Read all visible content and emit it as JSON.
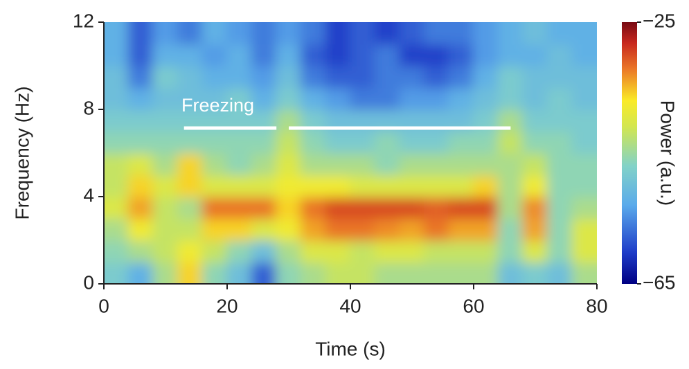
{
  "chart_data": {
    "type": "heatmap",
    "x_label": "Time (s)",
    "y_label": "Frequency (Hz)",
    "colorbar_label": "Power (a.u.)",
    "x": [
      2,
      6,
      10,
      14,
      18,
      22,
      26,
      30,
      34,
      38,
      42,
      46,
      50,
      54,
      58,
      62,
      66,
      70,
      74,
      78
    ],
    "y": [
      0.5,
      1.5,
      2.5,
      3.5,
      4.5,
      5.5,
      6.5,
      7.5,
      8.5,
      9.5,
      10.5,
      11.5
    ],
    "z": [
      [
        -48,
        -52,
        -44,
        -36,
        -46,
        -50,
        -58,
        -46,
        -44,
        -42,
        -42,
        -44,
        -44,
        -44,
        -44,
        -44,
        -50,
        -48,
        -50,
        -44
      ],
      [
        -46,
        -44,
        -42,
        -38,
        -42,
        -46,
        -50,
        -44,
        -40,
        -40,
        -42,
        -40,
        -40,
        -42,
        -42,
        -42,
        -46,
        -40,
        -46,
        -40
      ],
      [
        -44,
        -38,
        -42,
        -42,
        -36,
        -36,
        -40,
        -38,
        -34,
        -32,
        -32,
        -33,
        -34,
        -32,
        -34,
        -34,
        -46,
        -34,
        -46,
        -40
      ],
      [
        -40,
        -34,
        -42,
        -44,
        -32,
        -32,
        -32,
        -36,
        -32,
        -30,
        -30,
        -30,
        -30,
        -31,
        -30,
        -30,
        -44,
        -33,
        -46,
        -44
      ],
      [
        -42,
        -36,
        -40,
        -36,
        -40,
        -40,
        -40,
        -38,
        -38,
        -38,
        -40,
        -40,
        -40,
        -40,
        -40,
        -36,
        -44,
        -38,
        -46,
        -46
      ],
      [
        -42,
        -40,
        -44,
        -36,
        -44,
        -46,
        -44,
        -40,
        -44,
        -44,
        -44,
        -46,
        -44,
        -44,
        -44,
        -44,
        -44,
        -42,
        -46,
        -46
      ],
      [
        -46,
        -46,
        -46,
        -46,
        -46,
        -46,
        -46,
        -42,
        -46,
        -48,
        -48,
        -46,
        -48,
        -48,
        -46,
        -46,
        -42,
        -46,
        -46,
        -48
      ],
      [
        -48,
        -48,
        -48,
        -48,
        -48,
        -48,
        -48,
        -44,
        -48,
        -50,
        -50,
        -50,
        -50,
        -50,
        -50,
        -48,
        -44,
        -48,
        -48,
        -48
      ],
      [
        -50,
        -52,
        -50,
        -50,
        -50,
        -48,
        -52,
        -48,
        -52,
        -54,
        -56,
        -56,
        -54,
        -54,
        -52,
        -50,
        -48,
        -50,
        -48,
        -50
      ],
      [
        -50,
        -56,
        -48,
        -50,
        -52,
        -52,
        -54,
        -50,
        -56,
        -58,
        -58,
        -56,
        -56,
        -58,
        -56,
        -52,
        -48,
        -50,
        -50,
        -50
      ],
      [
        -52,
        -58,
        -52,
        -52,
        -54,
        -52,
        -56,
        -52,
        -58,
        -60,
        -58,
        -56,
        -60,
        -60,
        -58,
        -54,
        -52,
        -52,
        -50,
        -52
      ],
      [
        -52,
        -58,
        -54,
        -56,
        -52,
        -54,
        -56,
        -54,
        -56,
        -60,
        -58,
        -60,
        -58,
        -56,
        -56,
        -54,
        -52,
        -50,
        -52,
        -52
      ]
    ],
    "colormap": "jet",
    "xlim": [
      0,
      80
    ],
    "xticks": [
      0,
      20,
      40,
      60,
      80
    ],
    "ylim": [
      0,
      12
    ],
    "yticks": [
      0,
      4,
      8,
      12
    ],
    "clim": [
      -65,
      -25
    ],
    "cticks": [
      {
        "value": -65,
        "label": "−65"
      },
      {
        "value": -25,
        "label": "−25"
      }
    ],
    "annotation": "Freezing",
    "freezing": [
      [
        13,
        28
      ],
      [
        30,
        66
      ]
    ]
  }
}
